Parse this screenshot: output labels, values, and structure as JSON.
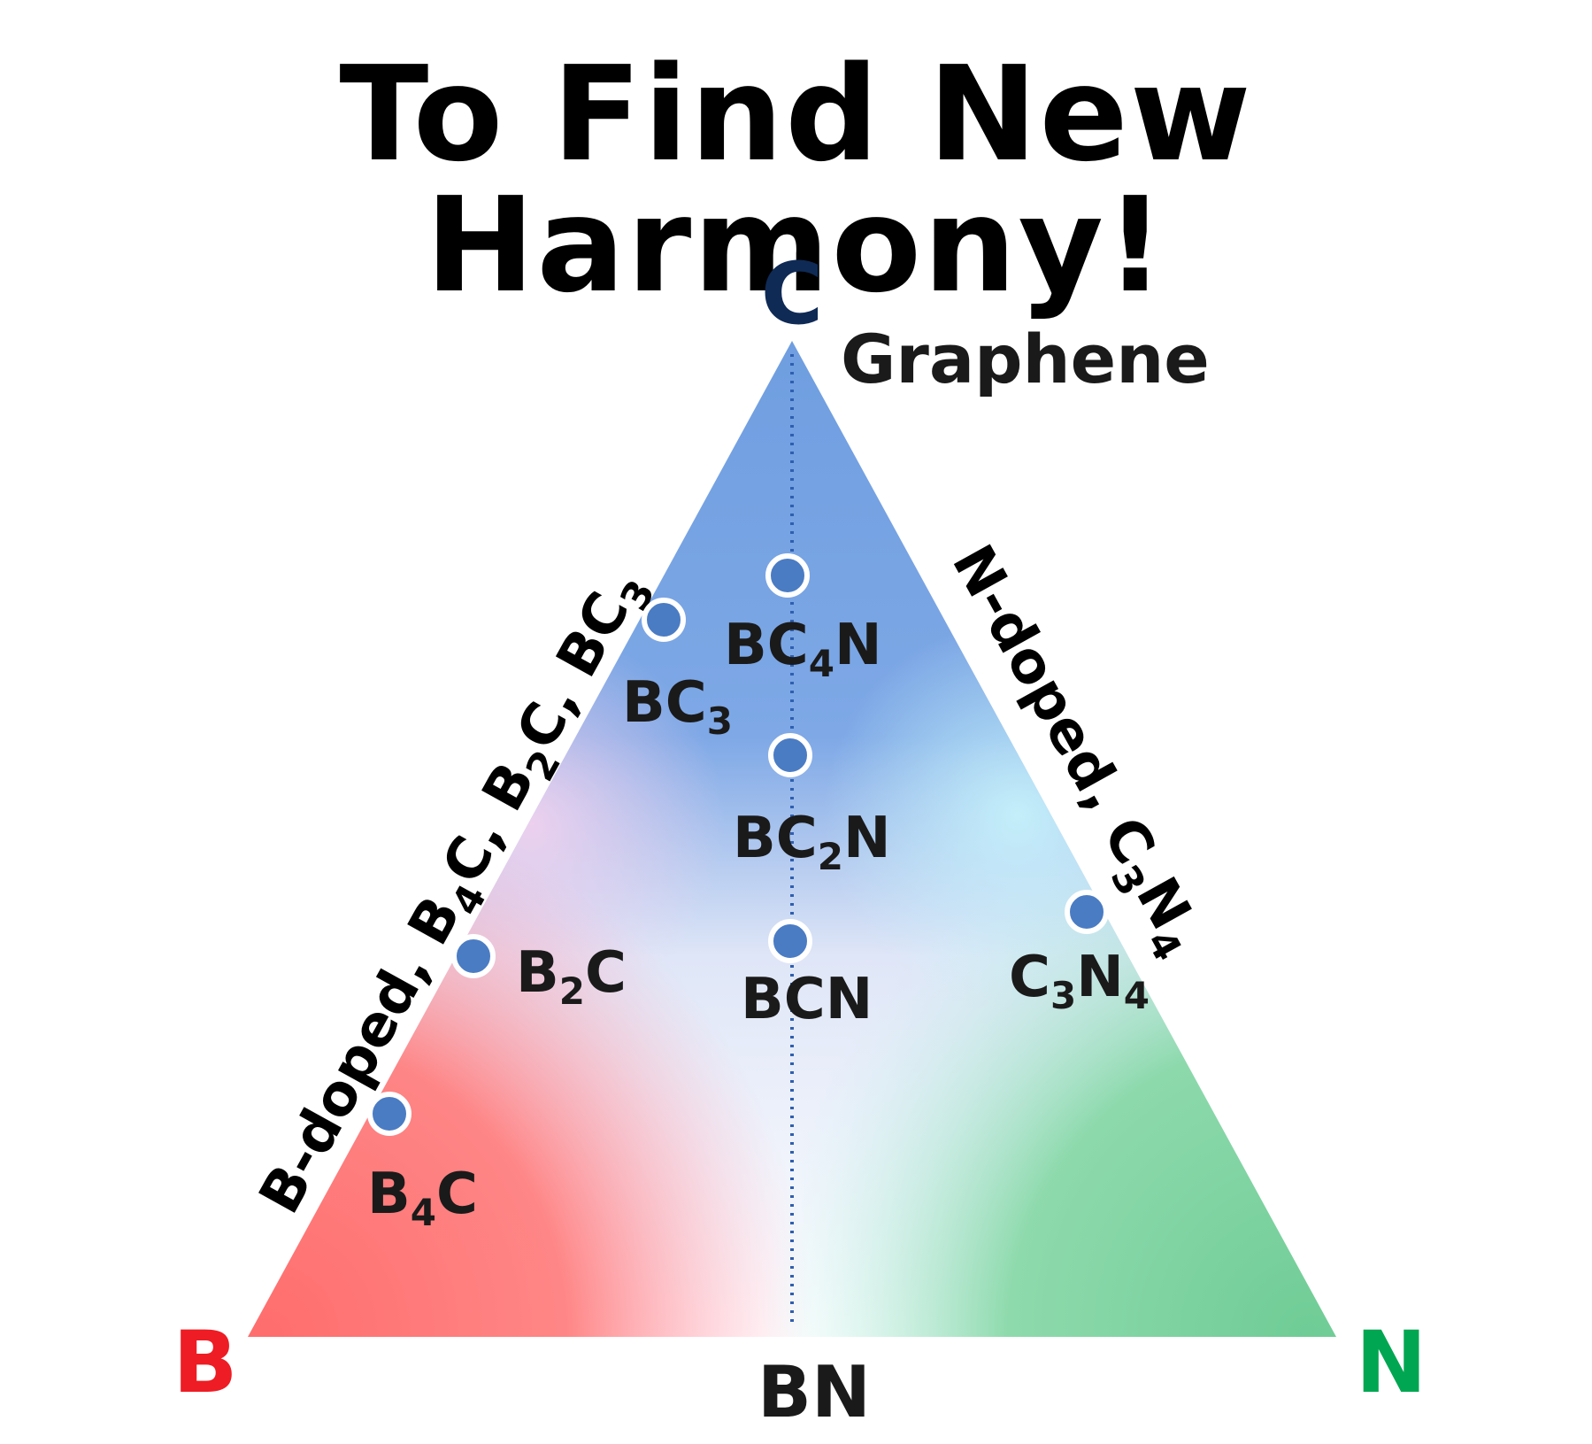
{
  "title": "To Find New Harmony!",
  "vertices": {
    "top": {
      "label": "C",
      "color": "#0f2a55"
    },
    "left": {
      "label": "B",
      "color": "#ee1c24"
    },
    "right": {
      "label": "N",
      "color": "#00a651"
    }
  },
  "graphene_label": "Graphene",
  "bottom_edge_label": "BN",
  "left_edge": {
    "text": "B-doped, B",
    "sub1": "4",
    "t2": "C, B",
    "sub2": "2",
    "t3": "C, BC",
    "sub3": "3"
  },
  "right_edge": {
    "text": "N-doped, C",
    "sub1": "3",
    "t2": "N",
    "sub2": "4"
  },
  "compounds": [
    {
      "id": "bc4n",
      "parts": [
        "BC",
        "4",
        "N"
      ]
    },
    {
      "id": "bc3",
      "parts": [
        "BC",
        "3",
        ""
      ]
    },
    {
      "id": "bc2n",
      "parts": [
        "BC",
        "2",
        "N"
      ]
    },
    {
      "id": "bcn",
      "parts": [
        "BCN",
        "",
        ""
      ]
    },
    {
      "id": "b2c",
      "parts": [
        "B",
        "2",
        "C"
      ]
    },
    {
      "id": "b4c",
      "parts": [
        "B",
        "4",
        "C"
      ]
    },
    {
      "id": "c3n4",
      "parts": [
        "C",
        "3",
        "N",
        "4"
      ]
    }
  ],
  "colors": {
    "carbon_blue": "#6f9ee0",
    "boron_red": "#ff7272",
    "nitrogen_green": "#7fd3a0",
    "point": "#4a7cc4"
  }
}
